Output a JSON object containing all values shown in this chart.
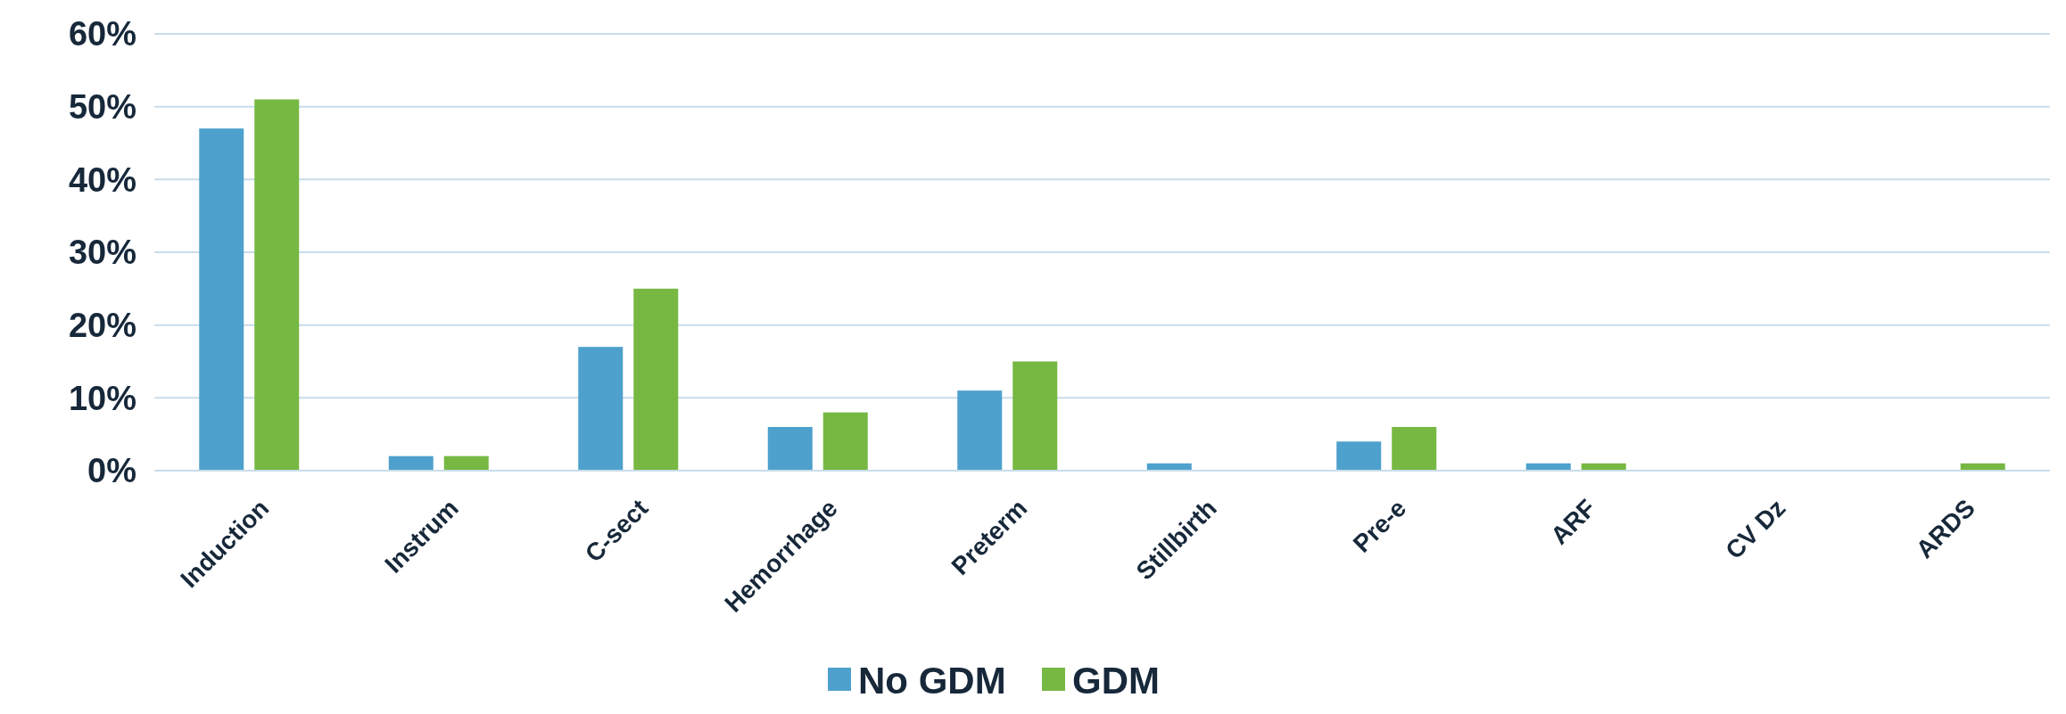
{
  "chart_data": {
    "type": "bar",
    "categories": [
      "Induction",
      "Instrum",
      "C-sect",
      "Hemorrhage",
      "Preterm",
      "Stillbirth",
      "Pre-e",
      "ARF",
      "CV Dz",
      "ARDS"
    ],
    "series": [
      {
        "name": "No GDM",
        "color": "#4ea1cc",
        "values": [
          47,
          2,
          17,
          6,
          11,
          1,
          4,
          1,
          0,
          0
        ]
      },
      {
        "name": "GDM",
        "color": "#77b843",
        "values": [
          51,
          2,
          25,
          8,
          15,
          0,
          6,
          1,
          0,
          1
        ]
      }
    ],
    "ylim": [
      0,
      60
    ],
    "yticks": [
      {
        "value": 0,
        "label": "0%"
      },
      {
        "value": 10,
        "label": "10%"
      },
      {
        "value": 20,
        "label": "20%"
      },
      {
        "value": 30,
        "label": "30%"
      },
      {
        "value": 40,
        "label": "40%"
      },
      {
        "value": 50,
        "label": "50%"
      },
      {
        "value": 60,
        "label": "60%"
      }
    ],
    "grid": "y",
    "legend": "bottom"
  }
}
